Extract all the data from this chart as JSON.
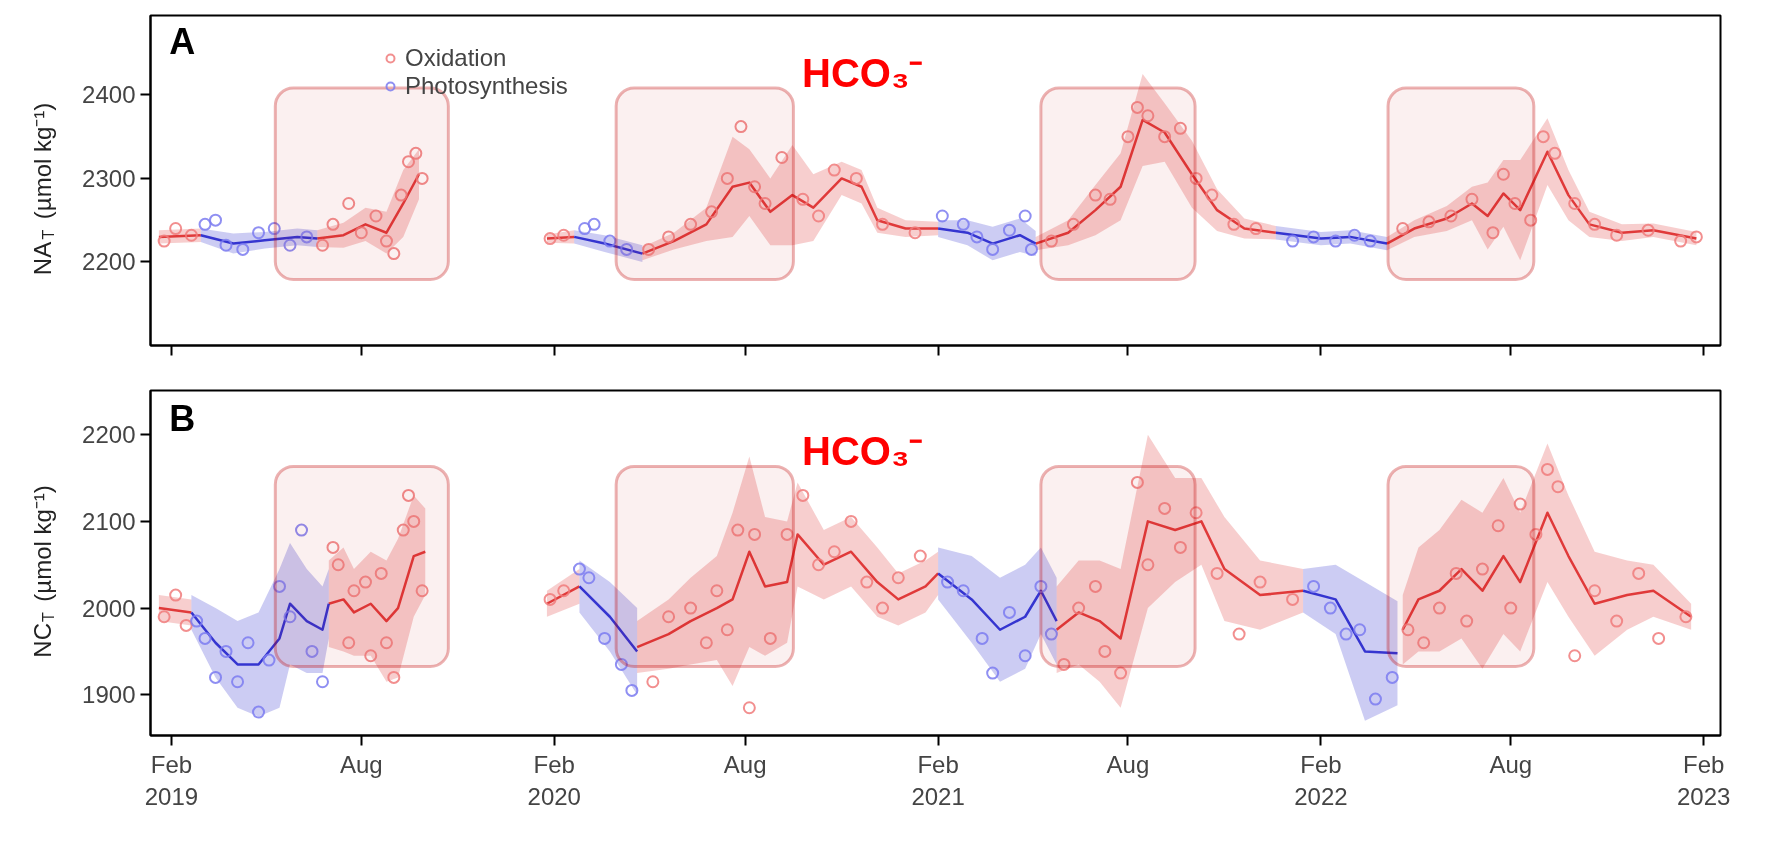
{
  "chart_data": [
    {
      "type": "line",
      "title": "A",
      "ylabel": "NA$_{T}$ (µmol kg⁻¹)",
      "xlim": [
        "2019-01-12",
        "2023-02-17"
      ],
      "ylim": [
        2100,
        2495
      ],
      "yticks": [
        2200,
        2300,
        2400
      ],
      "xticks": [
        {
          "value": "2019-02-01",
          "label": null
        },
        {
          "value": "2019-08-01",
          "label": null
        },
        {
          "value": "2020-02-01",
          "label": null
        },
        {
          "value": "2020-08-01",
          "label": null
        },
        {
          "value": "2021-02-01",
          "label": null
        },
        {
          "value": "2021-08-01",
          "label": null
        },
        {
          "value": "2022-02-01",
          "label": null
        },
        {
          "value": "2022-08-01",
          "label": null
        },
        {
          "value": "2023-02-01",
          "label": null
        }
      ],
      "tick_labels": "y",
      "grid": false,
      "legend": "top",
      "annotations": [
        "HCO₃⁻"
      ],
      "bands": [
        {
          "axis": "x",
          "from": "2019-05-11",
          "to": "2019-10-23",
          "color": "#c00000"
        },
        {
          "axis": "x",
          "from": "2020-03-31",
          "to": "2020-09-16",
          "color": "#c00000"
        },
        {
          "axis": "x",
          "from": "2021-05-10",
          "to": "2021-10-04",
          "color": "#c00000"
        },
        {
          "axis": "x",
          "from": "2022-04-06",
          "to": "2022-08-23",
          "color": "#c00000"
        }
      ],
      "series": [
        {
          "color": "#e03a3a",
          "x": [
            "2019-01-20",
            "2019-03-01",
            "2019-04-15",
            "2019-06-20",
            "2019-07-15",
            "2019-08-05",
            "2019-08-25",
            "2019-09-10",
            "2019-09-25",
            "2019-11-15",
            "2020-01-25",
            "2020-02-20",
            "2020-03-20",
            "2020-04-25",
            "2020-05-25",
            "2020-06-25",
            "2020-07-20",
            "2020-08-05",
            "2020-08-25",
            "2020-09-15",
            "2020-10-05",
            "2020-11-01",
            "2020-11-20",
            "2020-12-05",
            "2021-01-01",
            "2021-02-01",
            "2021-03-15",
            "2021-05-05",
            "2021-06-05",
            "2021-07-01",
            "2021-07-25",
            "2021-08-15",
            "2021-09-05",
            "2021-10-01",
            "2021-10-25",
            "2021-11-20",
            "2021-12-20",
            "2022-02-15",
            "2022-04-05",
            "2022-05-01",
            "2022-06-01",
            "2022-06-25",
            "2022-07-10",
            "2022-07-25",
            "2022-08-10",
            "2022-09-05",
            "2022-09-25",
            "2022-10-15",
            "2022-11-15",
            "2022-12-15",
            "2023-01-25"
          ],
          "values": [
            2230,
            2232,
            null,
            2228,
            2232,
            2245,
            2235,
            2270,
            2305,
            null,
            2228,
            2230,
            null,
            2210,
            2225,
            2245,
            2290,
            2295,
            2260,
            2280,
            2265,
            2300,
            2290,
            2250,
            2240,
            2240,
            null,
            2222,
            2235,
            2262,
            2290,
            2370,
            2355,
            2305,
            2262,
            2240,
            2235,
            null,
            2222,
            2240,
            2252,
            2270,
            2255,
            2282,
            2262,
            2332,
            2280,
            2245,
            2235,
            2238,
            2228
          ],
          "lower": [
            2222,
            2224,
            null,
            2218,
            2217,
            2225,
            2210,
            2230,
            2275,
            null,
            2223,
            2222,
            null,
            2202,
            2215,
            2225,
            2230,
            2255,
            2220,
            2220,
            2225,
            2280,
            2270,
            2235,
            2230,
            2232,
            null,
            2214,
            2220,
            2232,
            2250,
            2315,
            2320,
            2265,
            2237,
            2228,
            2227,
            null,
            2214,
            2230,
            2237,
            2250,
            2215,
            2242,
            2202,
            2292,
            2250,
            2230,
            2225,
            2230,
            2220
          ],
          "upper": [
            2238,
            2240,
            null,
            2238,
            2247,
            2265,
            2260,
            2310,
            2335,
            null,
            2233,
            2238,
            null,
            2218,
            2235,
            2265,
            2350,
            2335,
            2300,
            2340,
            2305,
            2320,
            2310,
            2265,
            2250,
            2248,
            null,
            2230,
            2250,
            2292,
            2330,
            2425,
            2390,
            2345,
            2287,
            2252,
            2243,
            null,
            2230,
            2250,
            2267,
            2290,
            2295,
            2322,
            2322,
            2372,
            2310,
            2260,
            2245,
            2246,
            2236
          ]
        },
        {
          "color": "#3535d0",
          "x": [
            "2019-03-01",
            "2019-04-01",
            "2019-05-01",
            "2019-06-01",
            "2019-06-20",
            "2019-12-01",
            "2020-02-20",
            "2020-03-20",
            "2020-04-25",
            "2020-10-01",
            "2021-02-01",
            "2021-03-01",
            "2021-03-25",
            "2021-04-20",
            "2021-05-05",
            "2021-09-01",
            "2021-12-20",
            "2022-02-01",
            "2022-03-01",
            "2022-04-05"
          ],
          "values": [
            2232,
            2222,
            2226,
            2230,
            2228,
            null,
            2230,
            2222,
            2210,
            null,
            2240,
            2235,
            2222,
            2232,
            2222,
            null,
            2235,
            2228,
            2230,
            2222
          ],
          "lower": [
            2224,
            2210,
            2216,
            2220,
            2218,
            null,
            2222,
            2212,
            2200,
            null,
            2230,
            2220,
            2202,
            2212,
            2207,
            null,
            2227,
            2220,
            2222,
            2214
          ],
          "upper": [
            2240,
            2234,
            2236,
            2240,
            2238,
            null,
            2238,
            2232,
            2220,
            null,
            2250,
            2250,
            2242,
            2252,
            2237,
            null,
            2243,
            2236,
            2238,
            2230
          ]
        },
        {
          "type": "scatter",
          "name": "Oxidation",
          "color": "#f07b7b",
          "marker": "circle",
          "x": [
            "2019-01-25",
            "2019-02-05",
            "2019-02-20",
            "2019-06-25",
            "2019-07-05",
            "2019-07-20",
            "2019-08-01",
            "2019-08-15",
            "2019-08-25",
            "2019-09-01",
            "2019-09-08",
            "2019-09-15",
            "2019-09-22",
            "2019-09-28",
            "2020-01-28",
            "2020-02-10",
            "2020-05-01",
            "2020-05-20",
            "2020-06-10",
            "2020-06-30",
            "2020-07-15",
            "2020-07-28",
            "2020-08-10",
            "2020-08-20",
            "2020-09-05",
            "2020-09-25",
            "2020-10-10",
            "2020-10-25",
            "2020-11-15",
            "2020-12-10",
            "2021-01-10",
            "2021-05-20",
            "2021-06-10",
            "2021-07-01",
            "2021-07-15",
            "2021-08-01",
            "2021-08-10",
            "2021-08-20",
            "2021-09-05",
            "2021-09-20",
            "2021-10-05",
            "2021-10-20",
            "2021-11-10",
            "2021-12-01",
            "2022-04-20",
            "2022-05-15",
            "2022-06-05",
            "2022-06-25",
            "2022-07-15",
            "2022-07-25",
            "2022-08-05",
            "2022-08-20",
            "2022-09-01",
            "2022-09-12",
            "2022-10-01",
            "2022-10-20",
            "2022-11-10",
            "2022-12-10",
            "2023-01-10",
            "2023-01-25"
          ],
          "values": [
            2225,
            2240,
            2232,
            2220,
            2245,
            2270,
            2235,
            2255,
            2225,
            2210,
            2280,
            2320,
            2330,
            2300,
            2228,
            2232,
            2215,
            2230,
            2245,
            2260,
            2300,
            2362,
            2290,
            2270,
            2325,
            2275,
            2255,
            2310,
            2300,
            2245,
            2235,
            2225,
            2245,
            2280,
            2275,
            2350,
            2385,
            2375,
            2350,
            2360,
            2300,
            2280,
            2245,
            2240,
            2240,
            2248,
            2255,
            2275,
            2235,
            2305,
            2270,
            2250,
            2350,
            2330,
            2270,
            2245,
            2232,
            2238,
            2225,
            2230
          ]
        },
        {
          "type": "scatter",
          "name": "Photosynthesis",
          "color": "#7b7bf0",
          "marker": "circle",
          "x": [
            "2019-03-05",
            "2019-03-15",
            "2019-03-25",
            "2019-04-10",
            "2019-04-25",
            "2019-05-10",
            "2019-05-25",
            "2019-06-10",
            "2020-03-01",
            "2020-03-10",
            "2020-03-25",
            "2020-04-10",
            "2021-02-05",
            "2021-02-25",
            "2021-03-10",
            "2021-03-25",
            "2021-04-10",
            "2021-04-25",
            "2021-05-01",
            "2022-01-05",
            "2022-01-25",
            "2022-02-15",
            "2022-03-05",
            "2022-03-20"
          ],
          "values": [
            2245,
            2250,
            2220,
            2215,
            2235,
            2240,
            2220,
            2230,
            2240,
            2245,
            2225,
            2215,
            2255,
            2245,
            2230,
            2215,
            2238,
            2255,
            2215,
            2225,
            2230,
            2225,
            2232,
            2225
          ]
        }
      ]
    },
    {
      "type": "line",
      "title": "B",
      "ylabel": "NC$_{T}$ (µmol kg⁻¹)",
      "xlim": [
        "2019-01-12",
        "2023-02-17"
      ],
      "ylim": [
        1853,
        2251
      ],
      "yticks": [
        1900,
        2000,
        2100,
        2200
      ],
      "xticks": [
        {
          "value": "2019-02-01",
          "label": "Feb\n2019"
        },
        {
          "value": "2019-08-01",
          "label": "Aug"
        },
        {
          "value": "2020-02-01",
          "label": "Feb\n2020"
        },
        {
          "value": "2020-08-01",
          "label": "Aug"
        },
        {
          "value": "2021-02-01",
          "label": "Feb\n2021"
        },
        {
          "value": "2021-08-01",
          "label": "Aug"
        },
        {
          "value": "2022-02-01",
          "label": "Feb\n2022"
        },
        {
          "value": "2022-08-01",
          "label": "Aug"
        },
        {
          "value": "2023-02-01",
          "label": "Feb\n2023"
        }
      ],
      "grid": false,
      "annotations": [
        "HCO₃⁻"
      ],
      "bands": [
        {
          "axis": "x",
          "from": "2019-05-11",
          "to": "2019-10-23",
          "color": "#c00000"
        },
        {
          "axis": "x",
          "from": "2020-03-31",
          "to": "2020-09-16",
          "color": "#c00000"
        },
        {
          "axis": "x",
          "from": "2021-05-10",
          "to": "2021-10-04",
          "color": "#c00000"
        },
        {
          "axis": "x",
          "from": "2022-04-06",
          "to": "2022-08-23",
          "color": "#c00000"
        }
      ],
      "series": [
        {
          "color": "#e03a3a",
          "x": [
            "2019-01-20",
            "2019-02-20",
            "2019-04-20",
            "2019-07-01",
            "2019-07-15",
            "2019-07-25",
            "2019-08-10",
            "2019-08-25",
            "2019-09-05",
            "2019-09-20",
            "2019-10-01",
            "2019-11-15",
            "2020-01-25",
            "2020-02-25",
            "2020-03-25",
            "2020-04-20",
            "2020-05-20",
            "2020-06-10",
            "2020-07-05",
            "2020-07-20",
            "2020-08-05",
            "2020-08-20",
            "2020-09-10",
            "2020-09-20",
            "2020-10-15",
            "2020-11-10",
            "2020-12-05",
            "2020-12-25",
            "2021-01-20",
            "2021-02-01",
            "2021-03-15",
            "2021-05-25",
            "2021-06-15",
            "2021-07-05",
            "2021-07-25",
            "2021-08-20",
            "2021-09-15",
            "2021-10-10",
            "2021-11-01",
            "2021-12-05",
            "2022-01-15",
            "2022-02-25",
            "2022-04-20",
            "2022-05-05",
            "2022-05-25",
            "2022-06-15",
            "2022-07-05",
            "2022-07-25",
            "2022-08-10",
            "2022-09-05",
            "2022-09-25",
            "2022-10-20",
            "2022-11-20",
            "2022-12-15",
            "2023-01-20"
          ],
          "values": [
            2000,
            1995,
            null,
            2005,
            2010,
            1995,
            2005,
            1985,
            2000,
            2060,
            2065,
            null,
            2005,
            2025,
            null,
            1955,
            1970,
            1985,
            2000,
            2010,
            2065,
            2025,
            2030,
            2085,
            2050,
            2065,
            2030,
            2010,
            2025,
            2040,
            null,
            1975,
            1995,
            1985,
            1965,
            2100,
            2090,
            2100,
            2045,
            2015,
            2020,
            null,
            1975,
            2010,
            2020,
            2045,
            2020,
            2060,
            2030,
            2110,
            2060,
            2005,
            2015,
            2020,
            1990
          ],
          "lower": [
            1985,
            1980,
            null,
            1955,
            1950,
            1945,
            1945,
            1915,
            1920,
            1990,
            2015,
            null,
            1990,
            2005,
            null,
            1925,
            1930,
            1935,
            1940,
            1910,
            1955,
            1945,
            1960,
            2025,
            2010,
            2025,
            1990,
            1980,
            1995,
            2015,
            null,
            1925,
            1935,
            1915,
            1885,
            2000,
            2030,
            2050,
            1985,
            1975,
            1995,
            null,
            1935,
            1950,
            1950,
            1965,
            1930,
            1970,
            1950,
            2030,
            1990,
            1945,
            1975,
            1990,
            1975
          ],
          "upper": [
            2015,
            2010,
            null,
            2055,
            2070,
            2045,
            2065,
            2055,
            2080,
            2130,
            2115,
            null,
            2020,
            2045,
            null,
            1985,
            2010,
            2035,
            2060,
            2110,
            2175,
            2105,
            2100,
            2145,
            2090,
            2105,
            2070,
            2040,
            2055,
            2065,
            null,
            2025,
            2055,
            2055,
            2045,
            2200,
            2150,
            2150,
            2105,
            2055,
            2045,
            null,
            2015,
            2070,
            2090,
            2125,
            2110,
            2150,
            2110,
            2190,
            2130,
            2065,
            2055,
            2050,
            2005
          ]
        },
        {
          "color": "#3535d0",
          "x": [
            "2019-02-20",
            "2019-03-15",
            "2019-04-05",
            "2019-04-25",
            "2019-05-15",
            "2019-05-25",
            "2019-06-10",
            "2019-06-25",
            "2019-07-01",
            "2019-11-01",
            "2020-02-25",
            "2020-03-25",
            "2020-04-20",
            "2020-10-01",
            "2021-02-01",
            "2021-03-05",
            "2021-04-01",
            "2021-04-25",
            "2021-05-10",
            "2021-05-25",
            "2021-09-01",
            "2022-01-15",
            "2022-02-15",
            "2022-03-15",
            "2022-04-15"
          ],
          "values": [
            1995,
            1960,
            1935,
            1935,
            1965,
            2005,
            1985,
            1975,
            2005,
            null,
            2025,
            1990,
            1950,
            null,
            2040,
            2010,
            1975,
            1990,
            2020,
            1985,
            null,
            2020,
            2010,
            1950,
            1948
          ],
          "lower": [
            1975,
            1920,
            1885,
            1875,
            1885,
            1935,
            1925,
            1925,
            1965,
            null,
            1995,
            1950,
            1900,
            null,
            2010,
            1960,
            1915,
            1930,
            1970,
            1935,
            null,
            1995,
            1970,
            1870,
            1888
          ],
          "upper": [
            2015,
            2000,
            1985,
            1995,
            2045,
            2075,
            2045,
            2025,
            2045,
            null,
            2055,
            2030,
            2000,
            null,
            2070,
            2060,
            2035,
            2050,
            2070,
            2035,
            null,
            2045,
            2050,
            2030,
            2008
          ]
        },
        {
          "type": "scatter",
          "color": "#f07b7b",
          "marker": "circle",
          "x": [
            "2019-01-25",
            "2019-02-05",
            "2019-02-15",
            "2019-07-05",
            "2019-07-10",
            "2019-07-20",
            "2019-07-25",
            "2019-08-05",
            "2019-08-10",
            "2019-08-20",
            "2019-08-25",
            "2019-09-01",
            "2019-09-10",
            "2019-09-15",
            "2019-09-20",
            "2019-09-28",
            "2020-01-28",
            "2020-02-10",
            "2020-05-05",
            "2020-05-20",
            "2020-06-10",
            "2020-06-25",
            "2020-07-05",
            "2020-07-15",
            "2020-07-25",
            "2020-08-05",
            "2020-08-10",
            "2020-08-25",
            "2020-09-10",
            "2020-09-25",
            "2020-10-10",
            "2020-10-25",
            "2020-11-10",
            "2020-11-25",
            "2020-12-10",
            "2020-12-25",
            "2021-01-15",
            "2021-06-01",
            "2021-06-15",
            "2021-07-01",
            "2021-07-10",
            "2021-07-25",
            "2021-08-10",
            "2021-08-20",
            "2021-09-05",
            "2021-09-20",
            "2021-10-05",
            "2021-10-25",
            "2021-11-15",
            "2021-12-05",
            "2022-01-05",
            "2022-04-25",
            "2022-05-10",
            "2022-05-25",
            "2022-06-10",
            "2022-06-20",
            "2022-07-05",
            "2022-07-20",
            "2022-08-01",
            "2022-08-10",
            "2022-08-25",
            "2022-09-05",
            "2022-09-15",
            "2022-10-01",
            "2022-10-20",
            "2022-11-10",
            "2022-12-01",
            "2022-12-20",
            "2023-01-15"
          ],
          "values": [
            1990,
            2015,
            1980,
            2070,
            2050,
            1960,
            2020,
            2030,
            1945,
            2040,
            1960,
            1920,
            2090,
            2130,
            2100,
            2020,
            2010,
            2020,
            1915,
            1990,
            2000,
            1960,
            2020,
            1975,
            2090,
            1885,
            2085,
            1965,
            2085,
            2130,
            2050,
            2065,
            2100,
            2030,
            2000,
            2035,
            2060,
            1935,
            2000,
            2025,
            1950,
            1925,
            2145,
            2050,
            2115,
            2070,
            2110,
            2040,
            1970,
            2030,
            2010,
            1975,
            1960,
            2000,
            2040,
            1985,
            2045,
            2095,
            2000,
            2120,
            2085,
            2160,
            2140,
            1945,
            2020,
            1985,
            2040,
            1965,
            1990
          ]
        },
        {
          "type": "scatter",
          "color": "#7b7bf0",
          "marker": "circle",
          "x": [
            "2019-02-25",
            "2019-03-05",
            "2019-03-15",
            "2019-03-25",
            "2019-04-05",
            "2019-04-15",
            "2019-04-25",
            "2019-05-05",
            "2019-05-15",
            "2019-05-25",
            "2019-06-05",
            "2019-06-15",
            "2019-06-25",
            "2020-02-25",
            "2020-03-05",
            "2020-03-20",
            "2020-04-05",
            "2020-04-15",
            "2021-02-10",
            "2021-02-25",
            "2021-03-15",
            "2021-03-25",
            "2021-04-10",
            "2021-04-25",
            "2021-05-10",
            "2021-05-20",
            "2022-01-25",
            "2022-02-10",
            "2022-02-25",
            "2022-03-10",
            "2022-03-25",
            "2022-04-10"
          ],
          "values": [
            1985,
            1965,
            1920,
            1950,
            1915,
            1960,
            1880,
            1940,
            2025,
            1990,
            2090,
            1950,
            1915,
            2045,
            2035,
            1965,
            1935,
            1905,
            2030,
            2020,
            1965,
            1925,
            1995,
            1945,
            2025,
            1970,
            2025,
            2000,
            1970,
            1975,
            1895,
            1920
          ]
        }
      ]
    }
  ]
}
